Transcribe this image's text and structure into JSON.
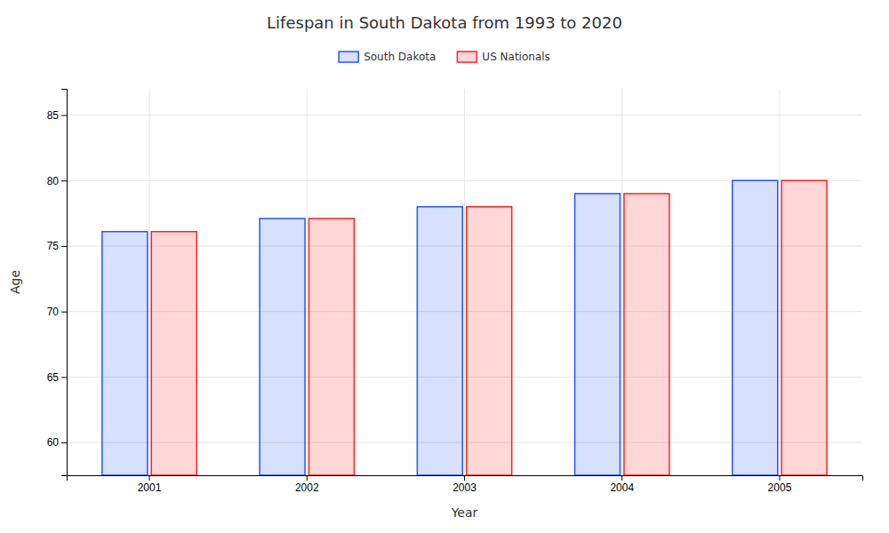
{
  "chart_data": {
    "type": "bar",
    "title": "Lifespan in South Dakota from 1993 to 2020",
    "xlabel": "Year",
    "ylabel": "Age",
    "categories": [
      "2001",
      "2002",
      "2003",
      "2004",
      "2005"
    ],
    "series": [
      {
        "name": "South Dakota",
        "color": "#2255ff",
        "values": [
          76.1,
          77.1,
          78.0,
          79.0,
          80.0
        ]
      },
      {
        "name": "US Nationals",
        "color": "#ff2222",
        "values": [
          76.1,
          77.1,
          78.0,
          79.0,
          80.0
        ]
      }
    ],
    "ylim": [
      57.5,
      87
    ],
    "yticks": [
      60,
      65,
      70,
      75,
      80,
      85
    ],
    "grid": true,
    "legend": "top"
  }
}
